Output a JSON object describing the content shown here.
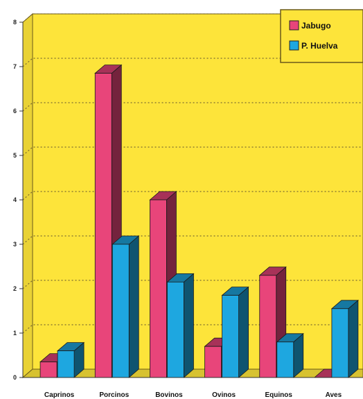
{
  "chart_data": {
    "type": "bar",
    "categories": [
      "Caprinos",
      "Porcinos",
      "Bovinos",
      "Ovinos",
      "Equinos",
      "Aves"
    ],
    "series": [
      {
        "name": "Jabugo",
        "values": [
          0.35,
          6.85,
          4.0,
          0.7,
          2.3,
          0.0
        ],
        "color": "#e8457a"
      },
      {
        "name": "P. Huelva",
        "values": [
          0.6,
          3.0,
          2.15,
          1.85,
          0.8,
          1.55
        ],
        "color": "#1ea7e0"
      }
    ],
    "yticks": [
      "0",
      "1",
      "2",
      "3",
      "4",
      "5",
      "6",
      "7",
      "8"
    ],
    "ylim": [
      0,
      8
    ],
    "grid": true,
    "legend_position": "top-right",
    "background": "#fde43a"
  }
}
